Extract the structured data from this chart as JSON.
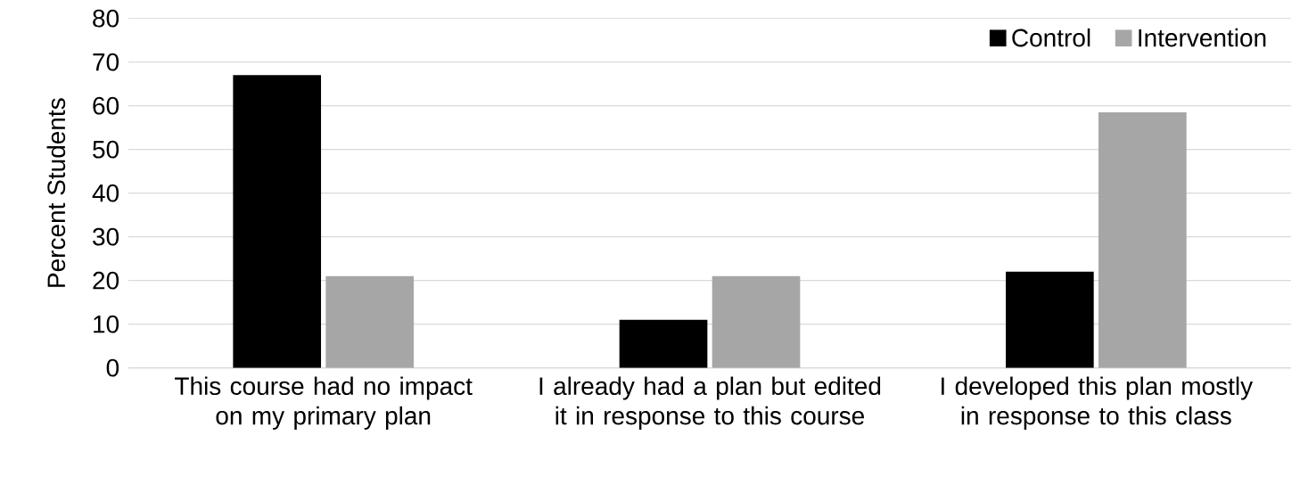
{
  "chart_data": {
    "type": "bar",
    "ylabel": "Percent Students",
    "categories": [
      "This course had no impact on my primary plan",
      "I already had a plan but edited it in response to this course",
      "I developed this plan mostly in response to this class"
    ],
    "series": [
      {
        "name": "Control",
        "color": "#000000",
        "values": [
          67,
          11,
          22
        ]
      },
      {
        "name": "Intervention",
        "color": "#a6a6a6",
        "values": [
          21,
          21,
          58.5
        ]
      }
    ],
    "ylim": [
      0,
      80
    ],
    "yticks": [
      0,
      10,
      20,
      30,
      40,
      50,
      60,
      70,
      80
    ],
    "grid": "y",
    "legend": "top right"
  }
}
